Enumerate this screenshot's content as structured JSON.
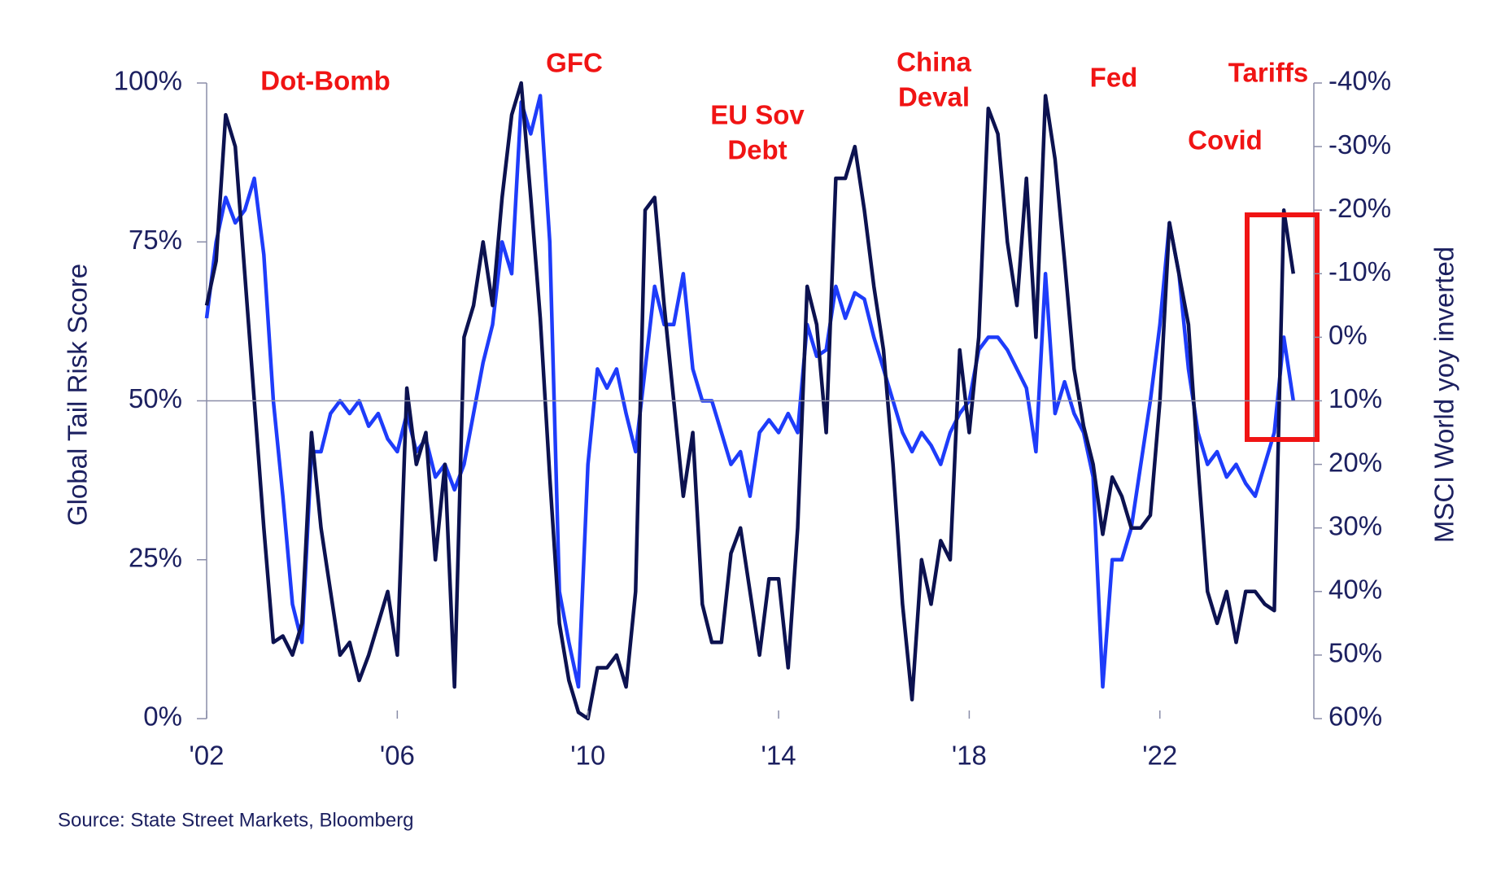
{
  "chart_data": {
    "type": "line",
    "ylabel": "Global Tail Risk Score",
    "y2label": "MSCI World yoy inverted",
    "source": "Source: State Street Markets, Bloomberg",
    "annotations": [
      [
        "Dot-Bomb"
      ],
      [
        "GFC"
      ],
      [
        "EU Sov",
        "Debt"
      ],
      [
        "China",
        "Deval"
      ],
      [
        "Fed"
      ],
      [
        "Tariffs"
      ],
      [
        "Covid"
      ]
    ],
    "xlim": [
      2002,
      2025.23
    ],
    "xticks": [
      {
        "value": 2002,
        "label": "'02"
      },
      {
        "value": 2006,
        "label": "'06"
      },
      {
        "value": 2010,
        "label": "'10"
      },
      {
        "value": 2014,
        "label": "'14"
      },
      {
        "value": 2018,
        "label": "'18"
      },
      {
        "value": 2022,
        "label": "'22"
      }
    ],
    "ylim": [
      0,
      100
    ],
    "yticks": [
      {
        "value": 0,
        "label": "0%"
      },
      {
        "value": 25,
        "label": "25%"
      },
      {
        "value": 50,
        "label": "50%"
      },
      {
        "value": 75,
        "label": "75%"
      },
      {
        "value": 100,
        "label": "100%"
      }
    ],
    "y2lim": [
      -40,
      60
    ],
    "y2_inverted": true,
    "y2ticks": [
      {
        "value": -40,
        "label": "-40%"
      },
      {
        "value": -30,
        "label": "-30%"
      },
      {
        "value": -20,
        "label": "-20%"
      },
      {
        "value": -10,
        "label": "-10%"
      },
      {
        "value": 0,
        "label": "0%"
      },
      {
        "value": 10,
        "label": "10%"
      },
      {
        "value": 20,
        "label": "20%"
      },
      {
        "value": 30,
        "label": "30%"
      },
      {
        "value": 40,
        "label": "40%"
      },
      {
        "value": 50,
        "label": "50%"
      },
      {
        "value": 60,
        "label": "60%"
      }
    ],
    "reference_line": 50,
    "x": [
      2002,
      2002.2,
      2002.4,
      2002.6,
      2002.8,
      2003,
      2003.2,
      2003.4,
      2003.6,
      2003.8,
      2004,
      2004.2,
      2004.4,
      2004.6,
      2004.8,
      2005,
      2005.2,
      2005.4,
      2005.6,
      2005.8,
      2006,
      2006.2,
      2006.4,
      2006.6,
      2006.8,
      2007,
      2007.2,
      2007.4,
      2007.6,
      2007.8,
      2008,
      2008.2,
      2008.4,
      2008.6,
      2008.8,
      2009,
      2009.2,
      2009.4,
      2009.6,
      2009.8,
      2010,
      2010.2,
      2010.4,
      2010.6,
      2010.8,
      2011,
      2011.2,
      2011.4,
      2011.6,
      2011.8,
      2012,
      2012.2,
      2012.4,
      2012.6,
      2012.8,
      2013,
      2013.2,
      2013.4,
      2013.6,
      2013.8,
      2014,
      2014.2,
      2014.4,
      2014.6,
      2014.8,
      2015,
      2015.2,
      2015.4,
      2015.6,
      2015.8,
      2016,
      2016.2,
      2016.4,
      2016.6,
      2016.8,
      2017,
      2017.2,
      2017.4,
      2017.6,
      2017.8,
      2018,
      2018.2,
      2018.4,
      2018.6,
      2018.8,
      2019,
      2019.2,
      2019.4,
      2019.6,
      2019.8,
      2020,
      2020.2,
      2020.4,
      2020.6,
      2020.8,
      2021,
      2021.2,
      2021.4,
      2021.6,
      2021.8,
      2022,
      2022.2,
      2022.4,
      2022.6,
      2022.8,
      2023,
      2023.2,
      2023.4,
      2023.6,
      2023.8,
      2024,
      2024.2,
      2024.4,
      2024.6,
      2024.8
    ],
    "series": [
      {
        "name": "Global Tail Risk Score",
        "color": "#0c1250",
        "values": [
          65,
          72,
          95,
          90,
          70,
          50,
          30,
          12,
          13,
          10,
          15,
          45,
          30,
          20,
          10,
          12,
          6,
          10,
          15,
          20,
          10,
          52,
          40,
          45,
          25,
          40,
          5,
          60,
          65,
          75,
          65,
          82,
          95,
          100,
          82,
          63,
          38,
          15,
          6,
          1,
          0,
          8,
          8,
          10,
          5,
          20,
          80,
          82,
          65,
          50,
          35,
          45,
          18,
          12,
          12,
          26,
          30,
          20,
          10,
          22,
          22,
          8,
          30,
          68,
          62,
          45,
          85,
          85,
          90,
          80,
          68,
          58,
          40,
          18,
          3,
          25,
          18,
          28,
          25,
          58,
          45,
          60,
          96,
          92,
          75,
          65,
          85,
          60,
          98,
          88,
          72,
          55,
          46,
          40,
          29,
          38,
          35,
          30,
          30,
          32,
          50,
          78,
          70,
          62,
          40,
          20,
          15,
          20,
          12,
          20,
          20,
          18,
          17,
          80,
          70
        ]
      },
      {
        "name": "MSCI World yoy inverted",
        "color": "#1e3cfa",
        "axis": "y2",
        "values": [
          -3,
          -15,
          -22,
          -18,
          -20,
          -25,
          -13,
          10,
          25,
          42,
          48,
          18,
          18,
          12,
          10,
          12,
          10,
          14,
          12,
          16,
          18,
          12,
          18,
          16,
          22,
          20,
          24,
          20,
          12,
          4,
          -2,
          -15,
          -10,
          -37,
          -32,
          -38,
          -15,
          40,
          48,
          55,
          20,
          5,
          8,
          5,
          12,
          18,
          5,
          -8,
          -2,
          -2,
          -10,
          5,
          10,
          10,
          15,
          20,
          18,
          25,
          15,
          13,
          15,
          12,
          15,
          -2,
          3,
          2,
          -8,
          -3,
          -7,
          -6,
          0,
          5,
          10,
          15,
          18,
          15,
          17,
          20,
          15,
          12,
          10,
          2,
          0,
          0,
          2,
          5,
          8,
          18,
          -10,
          12,
          7,
          12,
          15,
          22,
          55,
          35,
          35,
          30,
          20,
          10,
          -2,
          -18,
          -10,
          5,
          15,
          20,
          18,
          22,
          20,
          23,
          25,
          20,
          15,
          0,
          10
        ]
      }
    ]
  }
}
